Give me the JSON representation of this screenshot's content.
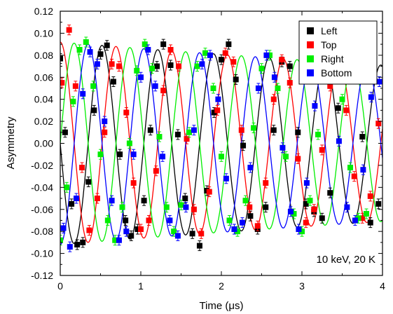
{
  "chart_data": {
    "type": "scatter",
    "xlabel": "Time (μs)",
    "ylabel": "Asymmetry",
    "xlim": [
      0,
      4
    ],
    "ylim": [
      -0.12,
      0.12
    ],
    "x_ticks": [
      0,
      1,
      2,
      3,
      4
    ],
    "y_ticks": [
      -0.12,
      -0.1,
      -0.08,
      -0.06,
      -0.04,
      -0.02,
      0.0,
      0.02,
      0.04,
      0.06,
      0.08,
      0.1,
      0.12
    ],
    "y_tick_labels": [
      "-0.12",
      "-0.10",
      "-0.08",
      "-0.06",
      "-0.04",
      "-0.02",
      "0.00",
      "0.02",
      "0.04",
      "0.06",
      "0.08",
      "0.10",
      "0.12"
    ],
    "grid": false,
    "legend_position": "top-right",
    "annotation": "10 keV, 20 K",
    "fit_model": {
      "frequency_MHz": 1.445,
      "amplitude_at_0": 0.092,
      "amplitude_at_4us": 0.071
    },
    "series": [
      {
        "name": "Left",
        "color": "#000000",
        "phase_deg": 90,
        "x": [
          0.0,
          0.06,
          0.14,
          0.21,
          0.28,
          0.35,
          0.42,
          0.5,
          0.58,
          0.66,
          0.74,
          0.81,
          0.88,
          0.96,
          1.04,
          1.12,
          1.2,
          1.28,
          1.37,
          1.46,
          1.55,
          1.64,
          1.73,
          1.82,
          1.91,
          2.0,
          2.09,
          2.18,
          2.27,
          2.36,
          2.45,
          2.55,
          2.65,
          2.75,
          2.85,
          2.95,
          3.05,
          3.15,
          3.25,
          3.35,
          3.45,
          3.55,
          3.65,
          3.75,
          3.85,
          3.95
        ],
        "y": [
          0.077,
          0.01,
          -0.055,
          -0.092,
          -0.09,
          -0.035,
          0.03,
          0.081,
          0.089,
          0.056,
          -0.01,
          -0.07,
          -0.084,
          -0.078,
          -0.052,
          0.012,
          0.07,
          0.09,
          0.071,
          0.008,
          -0.05,
          -0.082,
          -0.093,
          -0.043,
          0.028,
          0.076,
          0.09,
          0.058,
          -0.002,
          -0.066,
          -0.078,
          -0.058,
          0.012,
          0.074,
          0.07,
          0.01,
          -0.055,
          -0.062,
          -0.068,
          -0.045,
          0.032,
          0.073,
          0.062,
          0.006,
          -0.072,
          -0.055
        ]
      },
      {
        "name": "Top",
        "color": "#ff0000",
        "phase_deg": 0,
        "x": [
          0.02,
          0.11,
          0.19,
          0.27,
          0.36,
          0.46,
          0.55,
          0.64,
          0.73,
          0.82,
          0.91,
          1.0,
          1.1,
          1.19,
          1.28,
          1.37,
          1.47,
          1.57,
          1.66,
          1.75,
          1.85,
          1.95,
          2.05,
          2.15,
          2.25,
          2.35,
          2.45,
          2.55,
          2.65,
          2.75,
          2.85,
          2.95,
          3.05,
          3.15,
          3.25,
          3.35,
          3.45,
          3.55,
          3.65,
          3.75,
          3.85,
          3.95
        ],
        "y": [
          0.055,
          0.103,
          0.052,
          -0.022,
          -0.079,
          -0.05,
          0.01,
          0.072,
          0.07,
          0.028,
          -0.036,
          -0.078,
          -0.07,
          -0.025,
          0.048,
          0.085,
          0.07,
          0.004,
          -0.06,
          -0.082,
          -0.044,
          0.03,
          0.082,
          0.074,
          0.012,
          -0.058,
          -0.075,
          -0.036,
          0.04,
          0.076,
          0.055,
          -0.014,
          -0.072,
          -0.06,
          -0.006,
          0.052,
          0.072,
          0.03,
          -0.03,
          -0.068,
          -0.048,
          0.018
        ]
      },
      {
        "name": "Right",
        "color": "#00ee00",
        "phase_deg": 270,
        "x": [
          0.0,
          0.08,
          0.16,
          0.24,
          0.32,
          0.41,
          0.5,
          0.59,
          0.68,
          0.77,
          0.86,
          0.95,
          1.05,
          1.14,
          1.23,
          1.32,
          1.41,
          1.5,
          1.6,
          1.7,
          1.8,
          1.9,
          2.0,
          2.1,
          2.2,
          2.3,
          2.4,
          2.5,
          2.6,
          2.7,
          2.8,
          2.9,
          3.0,
          3.1,
          3.2,
          3.3,
          3.4,
          3.5,
          3.6,
          3.7,
          3.8,
          3.9
        ],
        "y": [
          -0.088,
          -0.04,
          0.038,
          0.085,
          0.092,
          0.052,
          -0.01,
          -0.07,
          -0.088,
          -0.058,
          0.0,
          0.066,
          0.09,
          0.068,
          0.006,
          -0.058,
          -0.08,
          -0.056,
          0.01,
          0.07,
          0.082,
          0.05,
          -0.012,
          -0.07,
          -0.08,
          -0.052,
          0.014,
          0.068,
          0.08,
          0.05,
          -0.012,
          -0.064,
          -0.08,
          -0.052,
          0.008,
          0.064,
          0.074,
          0.04,
          -0.022,
          -0.068,
          -0.064,
          0.06
        ]
      },
      {
        "name": "Bottom",
        "color": "#0000ff",
        "phase_deg": 180,
        "x": [
          0.04,
          0.12,
          0.2,
          0.28,
          0.37,
          0.46,
          0.55,
          0.64,
          0.73,
          0.82,
          0.91,
          1.0,
          1.09,
          1.18,
          1.27,
          1.36,
          1.46,
          1.56,
          1.66,
          1.76,
          1.86,
          1.96,
          2.06,
          2.16,
          2.26,
          2.36,
          2.46,
          2.56,
          2.66,
          2.76,
          2.86,
          2.96,
          3.06,
          3.16,
          3.26,
          3.36,
          3.46,
          3.56,
          3.66,
          3.76,
          3.86,
          3.96
        ],
        "y": [
          -0.077,
          -0.094,
          -0.05,
          0.045,
          0.083,
          0.072,
          0.02,
          -0.052,
          -0.088,
          -0.08,
          -0.01,
          0.06,
          0.085,
          0.052,
          -0.012,
          -0.07,
          -0.084,
          -0.058,
          0.012,
          0.072,
          0.08,
          0.04,
          -0.032,
          -0.078,
          -0.072,
          -0.022,
          0.05,
          0.08,
          0.06,
          -0.004,
          -0.062,
          -0.078,
          -0.036,
          0.034,
          0.075,
          0.06,
          0.002,
          -0.058,
          -0.07,
          -0.024,
          0.042,
          0.056
        ]
      }
    ]
  }
}
